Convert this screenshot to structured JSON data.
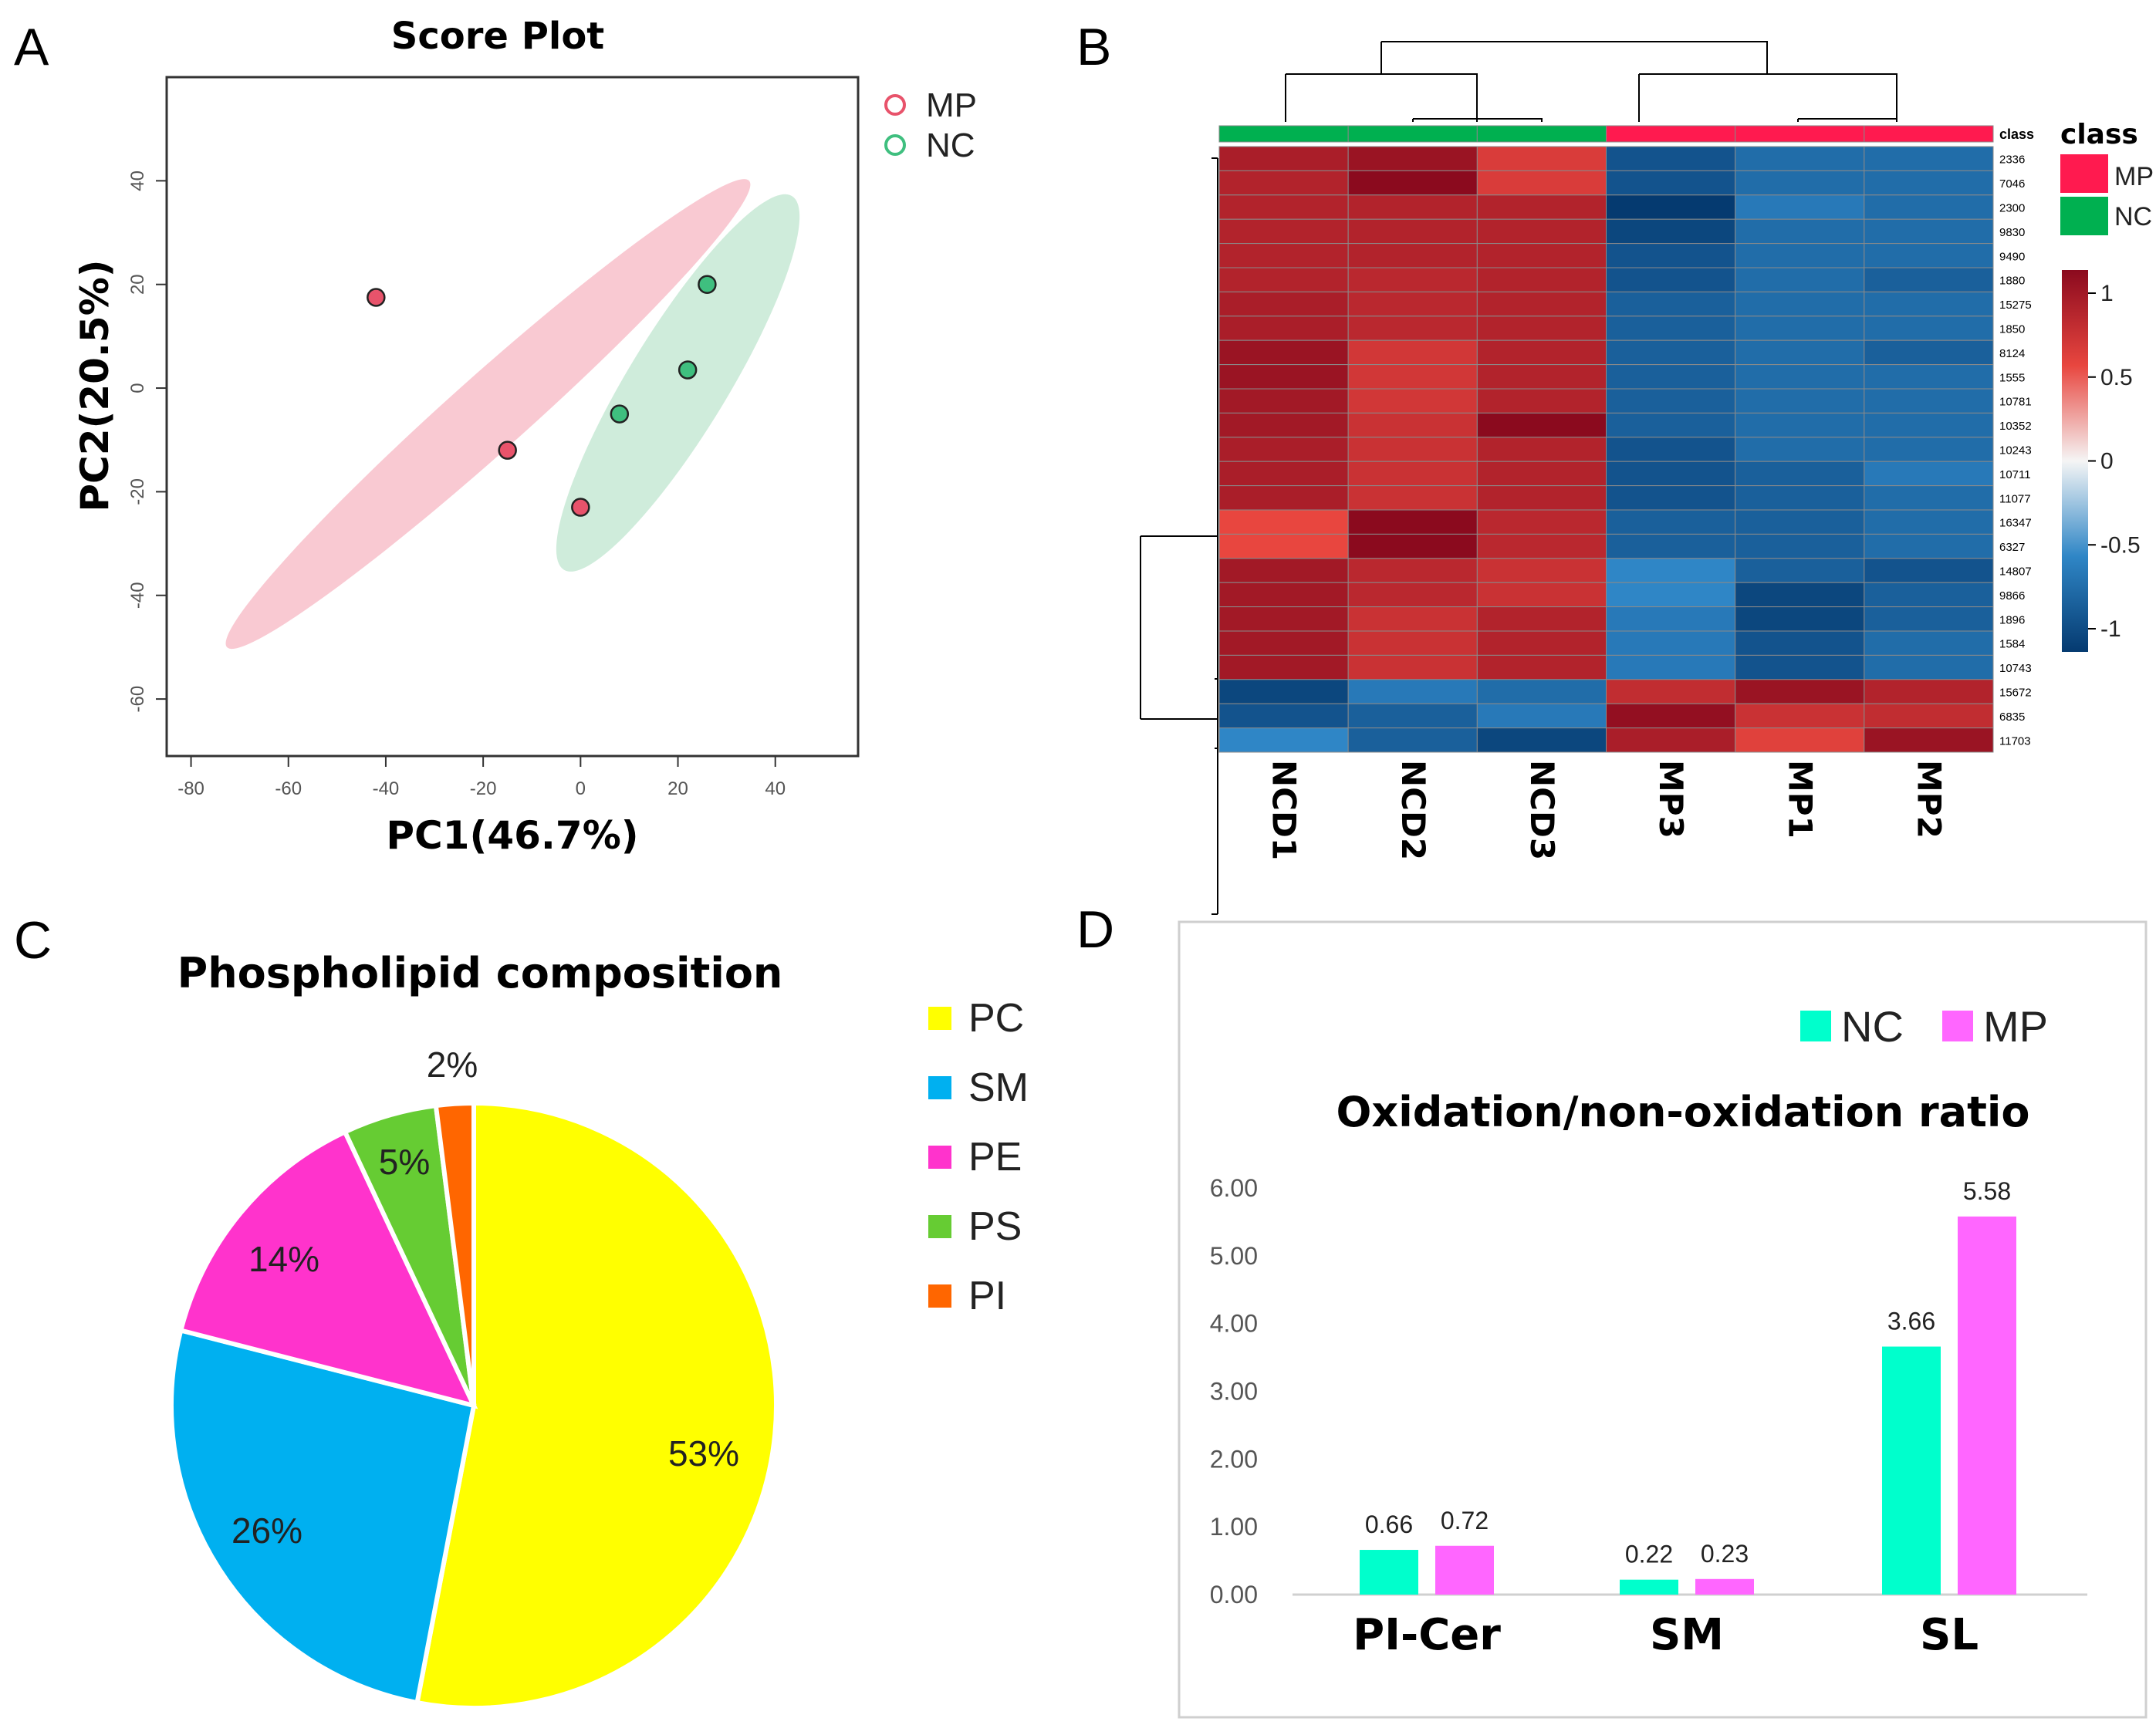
{
  "panels": {
    "a_letter": "A",
    "b_letter": "B",
    "c_letter": "C",
    "d_letter": "D"
  },
  "colors": {
    "mp": "#e8536b",
    "nc": "#3fbf7f",
    "mp_fill": "#f7b7c3",
    "nc_fill": "#bfe6cf",
    "heat_hi": "#8b0a1e",
    "heat_mid": "#f5f5f5",
    "heat_lo": "#053a70",
    "class_mp": "#ff1a4f",
    "class_nc": "#00b050",
    "pie_pc": "#ffff00",
    "pie_sm": "#00b0f0",
    "pie_pe": "#ff33cc",
    "pie_ps": "#66cc33",
    "pie_pi": "#ff6600",
    "bar_nc": "#00ffcc",
    "bar_mp": "#ff66ff"
  },
  "chart_data": [
    {
      "type": "scatter",
      "title": "Score Plot",
      "xlabel": "PC1(46.7%)",
      "ylabel": "PC2(20.5%)",
      "xlim": [
        -85,
        57
      ],
      "ylim": [
        -71,
        60
      ],
      "xticks": [
        -80,
        -60,
        -40,
        -20,
        0,
        20,
        40
      ],
      "yticks": [
        -60,
        -40,
        -20,
        0,
        20,
        40
      ],
      "x_tick_labels": [
        "-80",
        "-60",
        "-40",
        "-20",
        "0",
        "20",
        "40"
      ],
      "y_tick_labels": [
        "-60",
        "-40",
        "-20",
        "0",
        "20",
        "40"
      ],
      "legend": [
        "MP",
        "NC"
      ],
      "series": [
        {
          "name": "MP",
          "points": [
            [
              -42,
              17.5
            ],
            [
              -15,
              -12
            ],
            [
              0,
              -23
            ]
          ]
        },
        {
          "name": "NC",
          "points": [
            [
              26,
              20
            ],
            [
              22,
              3.5
            ],
            [
              8,
              -5
            ]
          ]
        }
      ],
      "ellipses": [
        {
          "name": "MP",
          "cx": -19,
          "cy": -5,
          "semi_major": 70,
          "semi_minor": 7.5,
          "angle_deg": 40
        },
        {
          "name": "NC",
          "cx": 20,
          "cy": 1,
          "semi_major": 43,
          "semi_minor": 10,
          "angle_deg": 57
        }
      ]
    },
    {
      "type": "heatmap",
      "columns": [
        "NCD1",
        "NCD2",
        "NCD3",
        "MP3",
        "MP1",
        "MP2"
      ],
      "column_class": [
        "NC",
        "NC",
        "NC",
        "MP",
        "MP",
        "MP"
      ],
      "class_label": "class",
      "legend_title": "class",
      "legend_classes": [
        "MP",
        "NC"
      ],
      "scale_ticks": [
        1,
        0.5,
        0,
        -0.5,
        -1
      ],
      "scale_tick_labels": [
        "1",
        "0.5",
        "0",
        "-0.5",
        "-1"
      ],
      "rows": [
        "2336",
        "7046",
        "2300",
        "9830",
        "9490",
        "1880",
        "15275",
        "1850",
        "8124",
        "1555",
        "10781",
        "10352",
        "10243",
        "10711",
        "11077",
        "16347",
        "6327",
        "14807",
        "9866",
        "1896",
        "1584",
        "10743",
        "15672",
        "6835",
        "11703"
      ],
      "values": [
        [
          1.0,
          1.1,
          0.7,
          -1.0,
          -0.8,
          -0.8
        ],
        [
          0.95,
          1.2,
          0.7,
          -1.0,
          -0.8,
          -0.8
        ],
        [
          0.95,
          0.95,
          0.95,
          -1.2,
          -0.7,
          -0.8
        ],
        [
          0.95,
          0.95,
          0.95,
          -1.1,
          -0.8,
          -0.8
        ],
        [
          0.95,
          0.95,
          0.95,
          -1.0,
          -0.8,
          -0.8
        ],
        [
          0.95,
          0.9,
          0.95,
          -1.0,
          -0.8,
          -0.9
        ],
        [
          1.0,
          0.9,
          0.95,
          -0.9,
          -0.8,
          -0.8
        ],
        [
          1.0,
          0.9,
          0.95,
          -0.9,
          -0.8,
          -0.8
        ],
        [
          1.1,
          0.75,
          0.95,
          -0.9,
          -0.8,
          -0.9
        ],
        [
          1.1,
          0.75,
          0.95,
          -0.9,
          -0.8,
          -0.8
        ],
        [
          1.05,
          0.75,
          0.95,
          -0.9,
          -0.8,
          -0.8
        ],
        [
          1.05,
          0.8,
          1.2,
          -0.9,
          -0.8,
          -0.8
        ],
        [
          1.0,
          0.8,
          0.95,
          -1.0,
          -0.8,
          -0.8
        ],
        [
          1.0,
          0.8,
          0.95,
          -1.0,
          -0.9,
          -0.7
        ],
        [
          1.0,
          0.8,
          0.95,
          -1.0,
          -0.9,
          -0.8
        ],
        [
          0.6,
          1.2,
          0.9,
          -0.9,
          -0.9,
          -0.8
        ],
        [
          0.6,
          1.2,
          0.9,
          -0.9,
          -0.9,
          -0.8
        ],
        [
          1.05,
          0.9,
          0.8,
          -0.6,
          -0.9,
          -1.0
        ],
        [
          1.05,
          0.9,
          0.8,
          -0.6,
          -1.1,
          -0.9
        ],
        [
          1.05,
          0.8,
          0.95,
          -0.7,
          -1.1,
          -0.9
        ],
        [
          1.05,
          0.8,
          0.95,
          -0.7,
          -1.0,
          -0.8
        ],
        [
          1.05,
          0.8,
          0.95,
          -0.7,
          -1.0,
          -0.8
        ],
        [
          -1.1,
          -0.7,
          -0.8,
          0.85,
          1.1,
          0.95
        ],
        [
          -1.0,
          -0.9,
          -0.7,
          1.15,
          0.8,
          0.85
        ],
        [
          -0.6,
          -0.9,
          -1.1,
          1.0,
          0.65,
          1.1
        ]
      ]
    },
    {
      "type": "pie",
      "title": "Phospholipid composition",
      "labels": [
        "PC",
        "SM",
        "PE",
        "PS",
        "PI"
      ],
      "values": [
        53,
        26,
        14,
        5,
        2
      ],
      "value_labels": [
        "53%",
        "26%",
        "14%",
        "5%",
        "2%"
      ],
      "start_angle_deg": 0,
      "direction": "clockwise"
    },
    {
      "type": "bar",
      "title": "Oxidation/non-oxidation ratio",
      "categories": [
        "PI-Cer",
        "SM",
        "SL"
      ],
      "series": [
        {
          "name": "NC",
          "values": [
            0.66,
            0.22,
            3.66
          ],
          "labels": [
            "0.66",
            "0.22",
            "3.66"
          ]
        },
        {
          "name": "MP",
          "values": [
            0.72,
            0.23,
            5.58
          ],
          "labels": [
            "0.72",
            "0.23",
            "5.58"
          ]
        }
      ],
      "ylim": [
        0,
        6
      ],
      "yticks": [
        0,
        1,
        2,
        3,
        4,
        5,
        6
      ],
      "y_tick_labels": [
        "0.00",
        "1.00",
        "2.00",
        "3.00",
        "4.00",
        "5.00",
        "6.00"
      ],
      "legend": [
        "NC",
        "MP"
      ],
      "legend_position": "top-right"
    }
  ]
}
